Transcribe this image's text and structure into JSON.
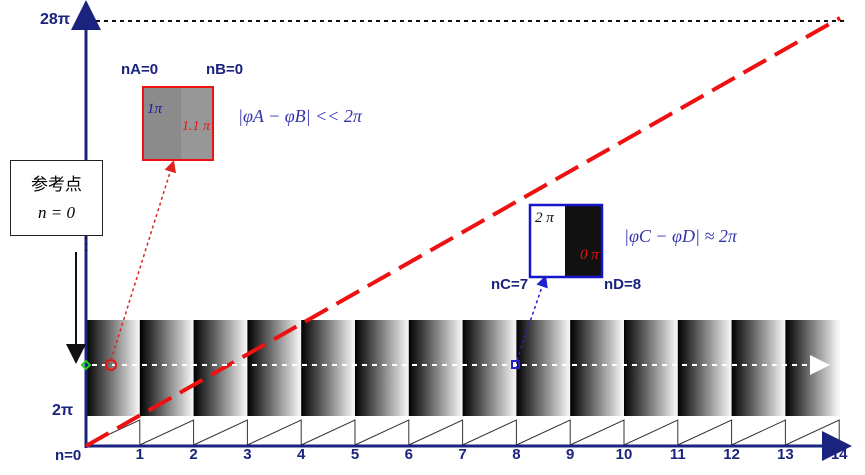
{
  "reference_box": {
    "line1": "参考点",
    "line2": "n = 0"
  },
  "y_axis": {
    "top_label": "28π",
    "low_label": "2π"
  },
  "x_axis": {
    "origin_label": "n=0",
    "ticks": [
      "1",
      "2",
      "3",
      "4",
      "5",
      "6",
      "7",
      "8",
      "9",
      "10",
      "11",
      "12",
      "13",
      "14"
    ]
  },
  "pair_ab": {
    "label_a": "nA=0",
    "label_b": "nB=0",
    "phase_a": "1π",
    "phase_b": "1.1 π",
    "relation": "|φA − φB| << 2π"
  },
  "pair_cd": {
    "label_c": "nC=7",
    "label_d": "nD=8",
    "phase_c": "2 π",
    "phase_d": "0 π",
    "relation": "|φC − φD| ≈ 2π"
  },
  "colors": {
    "axis": "#1a237e",
    "phase_line": "#ee1111",
    "box_ab": "#ee1111",
    "box_cd": "#1515cc",
    "pointer_ab": "#dd2222",
    "pointer_cd": "#2222cc"
  }
}
